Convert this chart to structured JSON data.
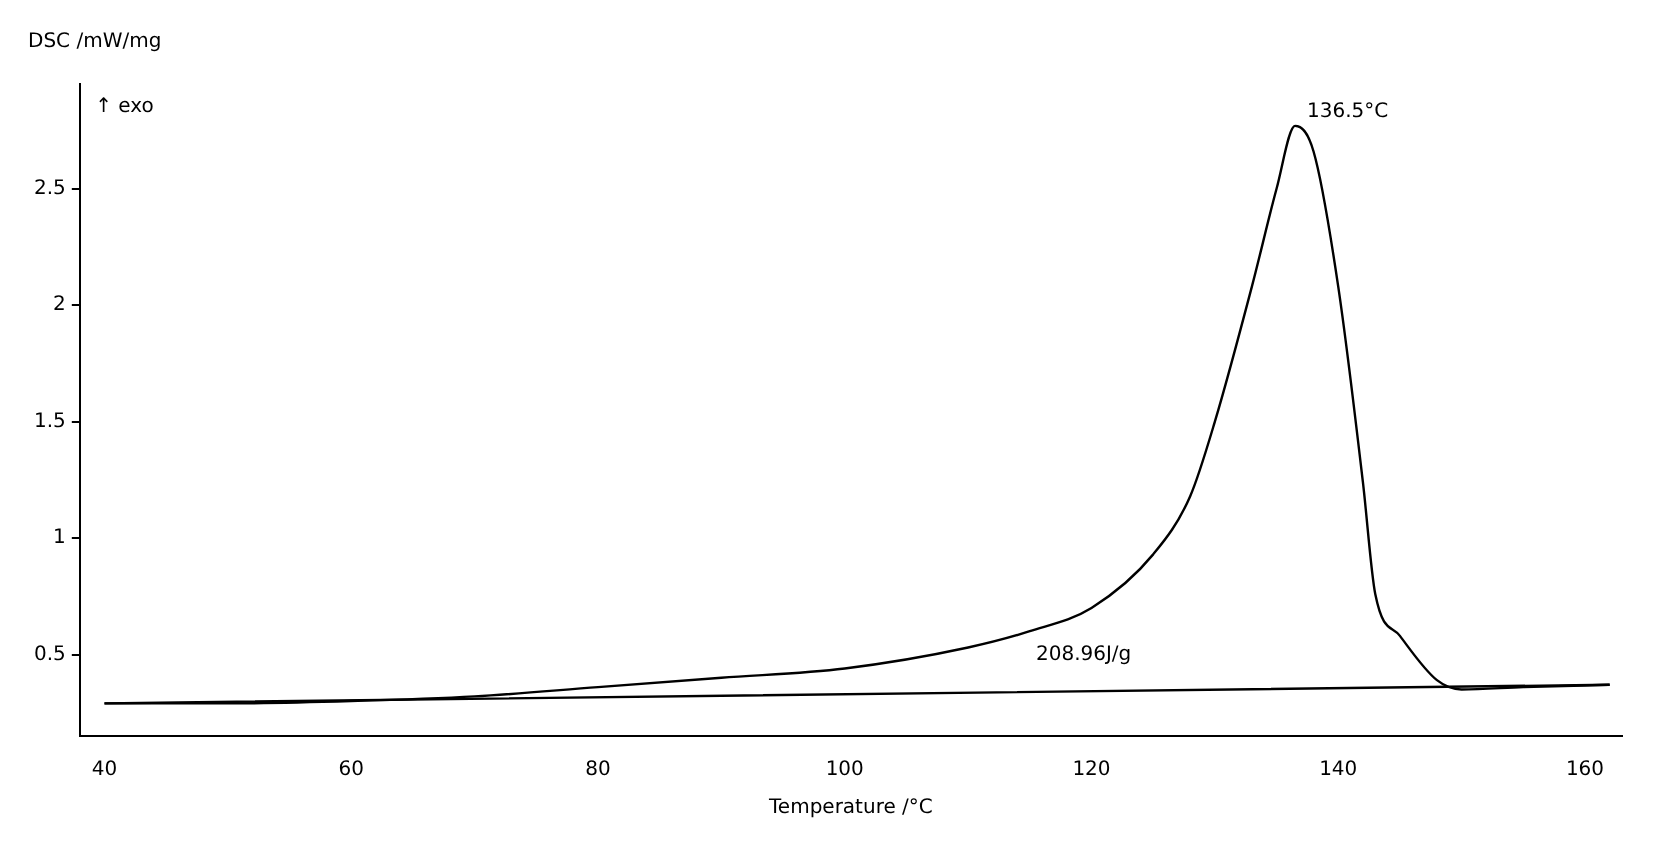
{
  "chart_data": {
    "type": "line",
    "xlabel": "Temperature /°C",
    "ylabel": "DSC /mW/mg",
    "annotations": [
      "↑ exo",
      {
        "text": "136.5°C",
        "x": 136.5,
        "y": 2.77
      },
      "208.96J/g"
    ],
    "xlim": [
      38,
      163
    ],
    "xticks": [
      40,
      60,
      80,
      100,
      120,
      140,
      160
    ],
    "ylim": [
      0.15,
      2.95
    ],
    "yticks": [
      0.5,
      1.0,
      1.5,
      2.0,
      2.5
    ],
    "grid": false,
    "legend": false,
    "marker": "none",
    "line_style": "solid",
    "series": [
      {
        "color": "#000000",
        "x": [
          40,
          50,
          60,
          70,
          80,
          90,
          100,
          110,
          115,
          120,
          125,
          128,
          130,
          133,
          135,
          136.5,
          138,
          140,
          142,
          143,
          145,
          148,
          150,
          155,
          162
        ],
        "values": [
          0.29,
          0.29,
          0.3,
          0.32,
          0.36,
          0.4,
          0.44,
          0.53,
          0.6,
          0.7,
          0.93,
          1.18,
          1.5,
          2.08,
          2.5,
          2.77,
          2.66,
          2.08,
          1.24,
          0.76,
          0.58,
          0.39,
          0.35,
          0.36,
          0.37
        ]
      },
      {
        "color": "#000000",
        "x": [
          40,
          162
        ],
        "values": [
          0.29,
          0.37
        ]
      }
    ]
  }
}
